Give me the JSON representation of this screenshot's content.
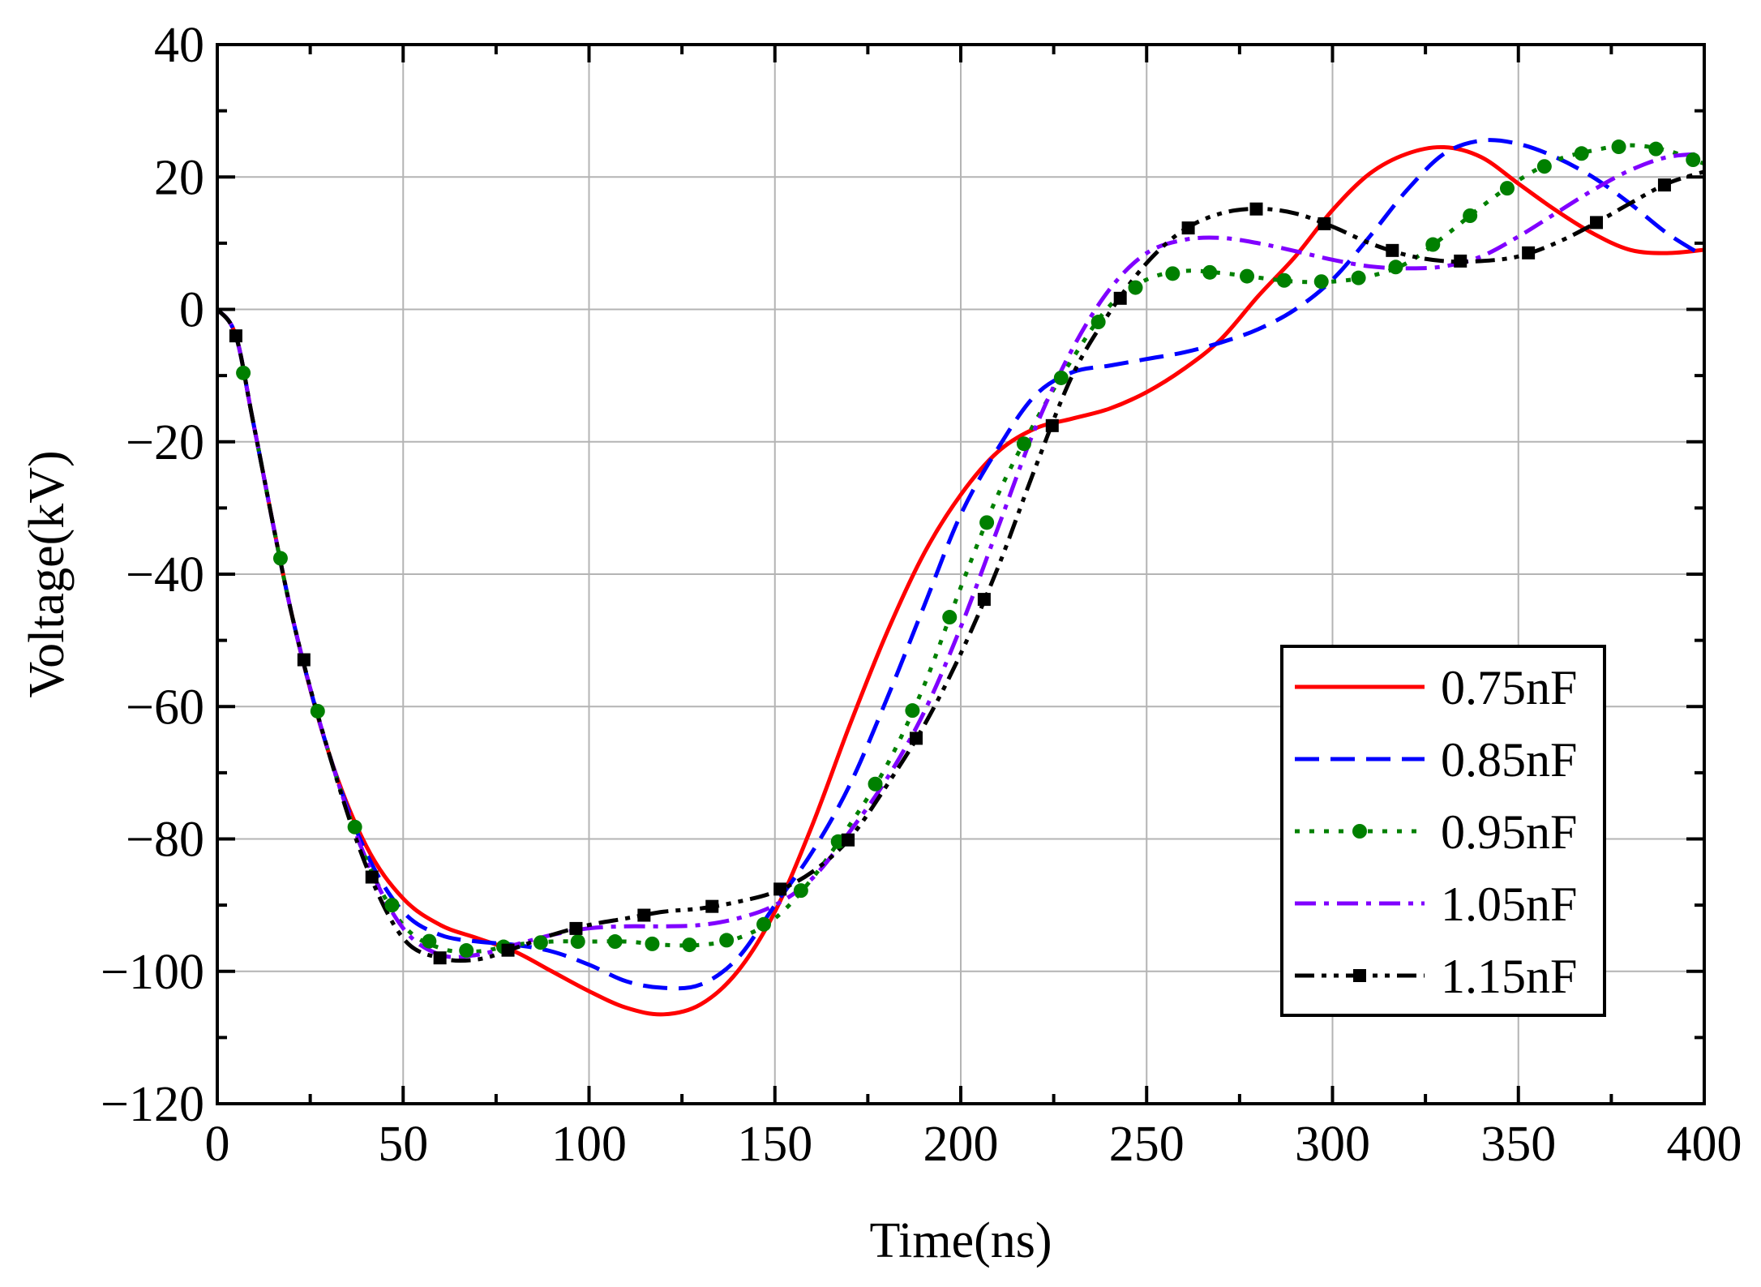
{
  "chart_data": {
    "type": "line",
    "title": "",
    "xlabel": "Time(ns)",
    "ylabel": "Voltage(kV)",
    "xlim": [
      0,
      400
    ],
    "ylim": [
      -120,
      40
    ],
    "xticks": [
      0,
      50,
      100,
      150,
      200,
      250,
      300,
      350,
      400
    ],
    "yticks": [
      -120,
      -100,
      -80,
      -60,
      -40,
      -20,
      0,
      20,
      40
    ],
    "xtick_labels": [
      "0",
      "50",
      "100",
      "150",
      "200",
      "250",
      "300",
      "350",
      "400"
    ],
    "ytick_labels": [
      "−120",
      "−100",
      "−80",
      "−60",
      "−40",
      "−20",
      "0",
      "20",
      "40"
    ],
    "grid": true,
    "legend_position": "right-center",
    "series": [
      {
        "name": "0.75nF",
        "color": "#ff0000",
        "dash": "solid",
        "marker": "none",
        "x": [
          0,
          5,
          10,
          20,
          30,
          40,
          50,
          60,
          70,
          80,
          90,
          100,
          110,
          120,
          130,
          140,
          150,
          160,
          170,
          180,
          190,
          200,
          210,
          220,
          230,
          240,
          250,
          260,
          270,
          280,
          290,
          300,
          310,
          320,
          330,
          340,
          350,
          360,
          370,
          380,
          390,
          400
        ],
        "y": [
          0,
          -4,
          -18,
          -46,
          -67,
          -81,
          -89,
          -93,
          -95,
          -97,
          -100,
          -103,
          -105.5,
          -106.5,
          -105,
          -100,
          -91,
          -78,
          -63,
          -49,
          -37,
          -28,
          -21.5,
          -18,
          -16.5,
          -15,
          -12.5,
          -9,
          -4.5,
          2,
          8,
          15,
          20.5,
          23.5,
          24.5,
          23,
          19,
          15,
          11.5,
          9,
          8.5,
          9
        ]
      },
      {
        "name": "0.85nF",
        "color": "#0000ff",
        "dash": "dashed",
        "marker": "none",
        "x": [
          0,
          5,
          10,
          20,
          30,
          40,
          50,
          60,
          70,
          80,
          90,
          100,
          110,
          120,
          130,
          140,
          150,
          160,
          170,
          180,
          190,
          200,
          210,
          220,
          230,
          240,
          250,
          260,
          270,
          280,
          290,
          300,
          310,
          320,
          330,
          340,
          350,
          360,
          370,
          380,
          390,
          400
        ],
        "y": [
          0,
          -4,
          -18,
          -46,
          -67,
          -82,
          -91,
          -94.5,
          -95.5,
          -96,
          -97,
          -99,
          -101.5,
          -102.5,
          -102,
          -98,
          -90,
          -82,
          -72,
          -59,
          -45,
          -31,
          -21,
          -13,
          -9.5,
          -8.5,
          -7.5,
          -6.5,
          -5,
          -3,
          0,
          4.5,
          11,
          18,
          23.5,
          25.5,
          25,
          23,
          20,
          16,
          11.5,
          8
        ]
      },
      {
        "name": "0.95nF",
        "color": "#008000",
        "dash": "dotted",
        "marker": "circle",
        "x": [
          0,
          5,
          10,
          20,
          30,
          40,
          50,
          60,
          70,
          80,
          90,
          100,
          110,
          120,
          130,
          140,
          150,
          160,
          170,
          180,
          190,
          200,
          210,
          220,
          230,
          240,
          250,
          260,
          270,
          280,
          290,
          300,
          310,
          320,
          330,
          340,
          350,
          360,
          370,
          380,
          390,
          400
        ],
        "y": [
          0,
          -4,
          -18,
          -46,
          -67,
          -83,
          -93,
          -96.5,
          -97,
          -96,
          -95.5,
          -95.5,
          -95.5,
          -96,
          -96,
          -95,
          -92,
          -86,
          -78,
          -69,
          -57,
          -42,
          -28,
          -17,
          -7.5,
          0.5,
          4.5,
          5.8,
          5.5,
          4.8,
          4.2,
          4.2,
          5,
          7,
          11,
          15.5,
          19.5,
          22.5,
          24,
          24.8,
          24,
          22
        ]
      },
      {
        "name": "1.05nF",
        "color": "#8000ff",
        "dash": "dashdot",
        "marker": "none",
        "x": [
          0,
          5,
          10,
          20,
          30,
          40,
          50,
          60,
          70,
          80,
          90,
          100,
          110,
          120,
          130,
          140,
          150,
          160,
          170,
          180,
          190,
          200,
          210,
          220,
          230,
          240,
          250,
          260,
          270,
          280,
          290,
          300,
          310,
          320,
          330,
          340,
          350,
          360,
          370,
          380,
          390,
          400
        ],
        "y": [
          0,
          -4,
          -18,
          -46,
          -67,
          -83,
          -93.5,
          -97.5,
          -97.5,
          -96,
          -94.5,
          -93.5,
          -93.2,
          -93.2,
          -93,
          -92,
          -90,
          -86,
          -79,
          -71,
          -61,
          -48,
          -33,
          -18,
          -6,
          3,
          8.5,
          10.5,
          10.8,
          10,
          8.8,
          7.5,
          6.5,
          6.2,
          6.5,
          8,
          11,
          14.5,
          18,
          21,
          23,
          23.5
        ]
      },
      {
        "name": "1.15nF",
        "color": "#000000",
        "dash": "dashdotdot",
        "marker": "square",
        "x": [
          0,
          5,
          10,
          20,
          30,
          40,
          50,
          60,
          70,
          80,
          90,
          100,
          110,
          120,
          130,
          140,
          150,
          160,
          170,
          180,
          190,
          200,
          210,
          220,
          230,
          240,
          250,
          260,
          270,
          280,
          290,
          300,
          310,
          320,
          330,
          340,
          350,
          360,
          370,
          380,
          390,
          400
        ],
        "y": [
          0,
          -4,
          -18,
          -46,
          -67,
          -84,
          -95,
          -98,
          -98.2,
          -96.5,
          -94.5,
          -93,
          -92,
          -91,
          -90.5,
          -89.5,
          -88,
          -85,
          -80,
          -72,
          -63,
          -52,
          -39,
          -24,
          -10,
          -0.5,
          7,
          12,
          14.5,
          15.2,
          14.5,
          12.5,
          10,
          8.2,
          7.3,
          7.3,
          8,
          10,
          12.8,
          16,
          19,
          20.8
        ]
      }
    ]
  }
}
